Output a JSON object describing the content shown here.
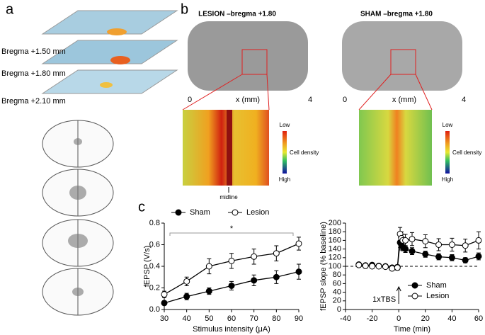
{
  "panel_a": {
    "label": "a",
    "bregma_labels": [
      "Bregma +1.50 mm",
      "Bregma +1.80 mm",
      "Bregma +2.10 mm"
    ]
  },
  "panel_b": {
    "label": "b",
    "midline": "midline",
    "images": [
      {
        "title": "LESION –bregma +1.80",
        "x_axis_label": "x (mm)",
        "x_tick_labels": [
          "0",
          "4"
        ],
        "colorbar": {
          "top": "Low",
          "title": "Cell density",
          "bottom": "High"
        }
      },
      {
        "title": "SHAM –bregma +1.80",
        "x_axis_label": "x (mm)",
        "x_tick_labels": [
          "0",
          "4"
        ],
        "colorbar": {
          "top": "Low",
          "title": "Cell density",
          "bottom": "High"
        }
      }
    ]
  },
  "panel_c": {
    "label": "c"
  },
  "chart_data": [
    {
      "type": "line",
      "x_label": "Stimulus intensity (μA)",
      "y_label": "fEPSP (V/s)",
      "x": [
        30,
        40,
        50,
        60,
        70,
        80,
        90
      ],
      "xlim": [
        30,
        90
      ],
      "xticks": [
        30,
        40,
        50,
        60,
        70,
        80,
        90
      ],
      "ylim": [
        0,
        0.8
      ],
      "yticks": [
        {
          "value": 0,
          "label": "0.0"
        },
        0.2,
        0.4,
        0.6,
        0.8
      ],
      "legend": "upper center",
      "annotation": "*",
      "series": [
        {
          "name": "Sham",
          "color": "#000000",
          "values": [
            0.06,
            0.12,
            0.17,
            0.22,
            0.27,
            0.3,
            0.35
          ],
          "errors": [
            0.02,
            0.03,
            0.03,
            0.04,
            0.05,
            0.06,
            0.07
          ]
        },
        {
          "name": "Lesion",
          "color": "#ffffff",
          "values": [
            0.14,
            0.26,
            0.4,
            0.45,
            0.49,
            0.52,
            0.61
          ],
          "errors": [
            0.03,
            0.04,
            0.07,
            0.07,
            0.07,
            0.07,
            0.06
          ]
        }
      ]
    },
    {
      "type": "line",
      "x_label": "Time (min)",
      "y_label": "fEPSP slope (% baseline)",
      "x": [
        -30,
        -25,
        -20,
        -15,
        -10,
        -5,
        -1,
        1,
        2,
        3,
        5,
        10,
        20,
        30,
        40,
        50,
        60
      ],
      "xlim": [
        -40,
        60
      ],
      "xticks": [
        -40,
        -20,
        0,
        20,
        40,
        60
      ],
      "ylim": [
        0,
        200
      ],
      "yticks": [
        0,
        20,
        40,
        60,
        80,
        100,
        120,
        140,
        160,
        180,
        200
      ],
      "legend": "lower right",
      "annotation": "1xTBS",
      "reference_line": 100,
      "series": [
        {
          "name": "Sham",
          "color": "#000000",
          "values": [
            104,
            102,
            103,
            101,
            100,
            97,
            98,
            155,
            148,
            145,
            140,
            135,
            128,
            122,
            120,
            114,
            123
          ],
          "errors": [
            4,
            3,
            3,
            3,
            3,
            4,
            5,
            12,
            10,
            9,
            8,
            8,
            7,
            7,
            7,
            6,
            8
          ]
        },
        {
          "name": "Lesion",
          "color": "#ffffff",
          "values": [
            103,
            101,
            100,
            100,
            99,
            95,
            97,
            175,
            165,
            160,
            160,
            163,
            158,
            150,
            150,
            148,
            160
          ],
          "errors": [
            4,
            3,
            3,
            3,
            3,
            5,
            6,
            15,
            15,
            14,
            14,
            15,
            15,
            14,
            15,
            15,
            20
          ]
        }
      ]
    }
  ]
}
